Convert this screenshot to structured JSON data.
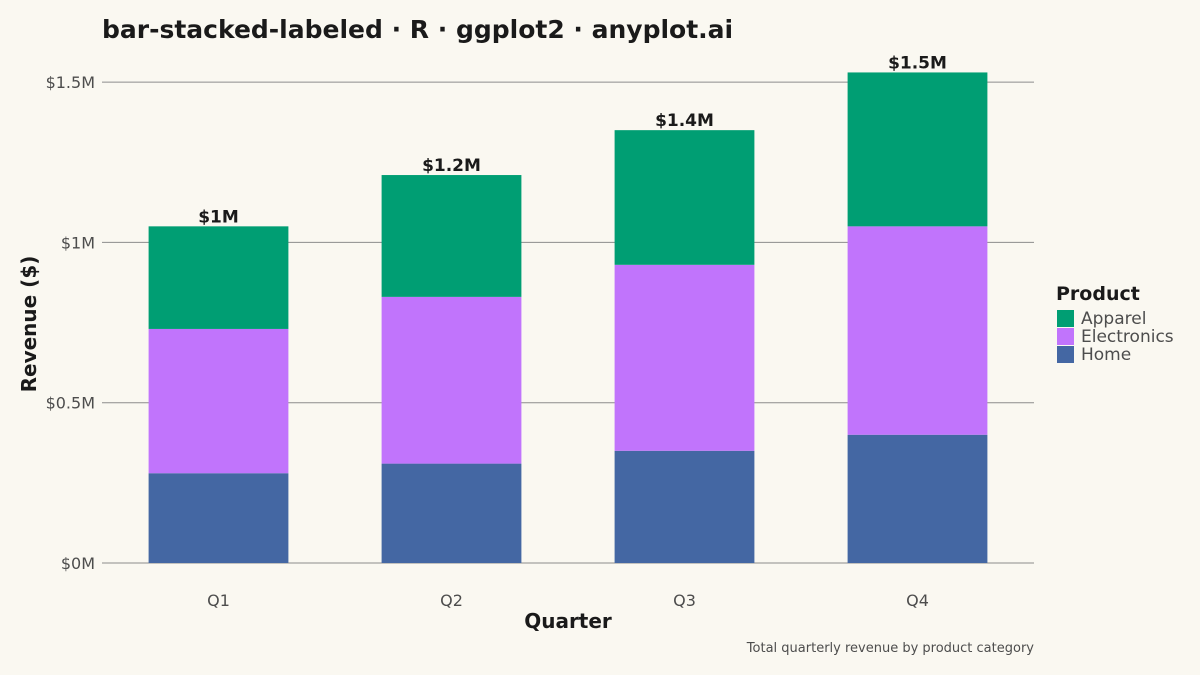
{
  "title": "bar-stacked-labeled · R · ggplot2 · anyplot.ai",
  "caption": "Total quarterly revenue by product category",
  "chart_data": {
    "type": "bar",
    "stacked": true,
    "categories": [
      "Q1",
      "Q2",
      "Q3",
      "Q4"
    ],
    "series": [
      {
        "name": "Home",
        "color": "#4467A3",
        "values": [
          280000,
          310000,
          350000,
          400000
        ]
      },
      {
        "name": "Electronics",
        "color": "#C174FC",
        "values": [
          450000,
          520000,
          580000,
          650000
        ]
      },
      {
        "name": "Apparel",
        "color": "#009E73",
        "values": [
          320000,
          380000,
          420000,
          480000
        ]
      }
    ],
    "totals": [
      1050000,
      1210000,
      1350000,
      1530000
    ],
    "total_labels": [
      "$1M",
      "$1.2M",
      "$1.4M",
      "$1.5M"
    ],
    "xlabel": "Quarter",
    "ylabel": "Revenue ($)",
    "ylim": [
      0,
      1600000
    ],
    "yticks": [
      0,
      500000,
      1000000,
      1500000
    ],
    "ytick_labels": [
      "$0M",
      "$0.5M",
      "$1M",
      "$1.5M"
    ],
    "grid": "horizontal",
    "legend": {
      "title": "Product",
      "placement": "right",
      "entries": [
        {
          "name": "Apparel",
          "color": "#009E73"
        },
        {
          "name": "Electronics",
          "color": "#C174FC"
        },
        {
          "name": "Home",
          "color": "#4467A3"
        }
      ]
    }
  }
}
